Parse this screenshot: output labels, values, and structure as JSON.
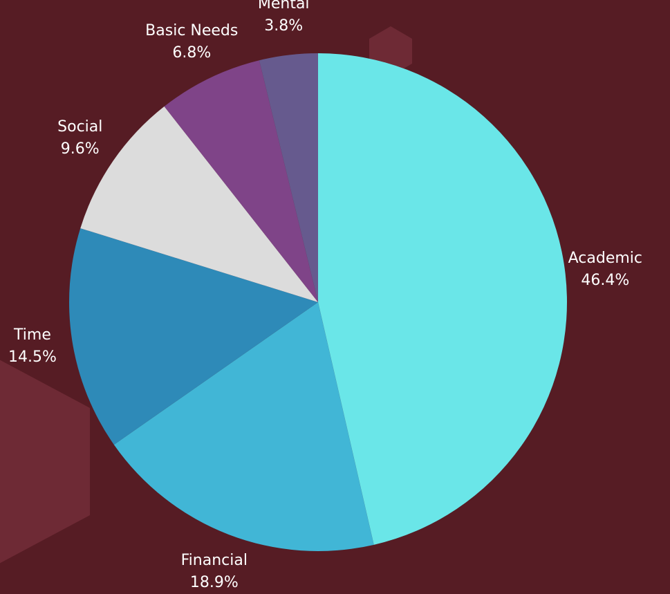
{
  "chart_data": {
    "type": "pie",
    "categories": [
      "Academic",
      "Financial",
      "Time",
      "Social",
      "Basic Needs",
      "Mental"
    ],
    "values": [
      46.4,
      18.9,
      14.5,
      9.6,
      6.8,
      3.8
    ],
    "value_labels": [
      "46.4%",
      "18.9%",
      "14.5%",
      "9.6%",
      "6.8%",
      "3.8%"
    ],
    "colors": [
      "#6ae6e8",
      "#41b6d6",
      "#2e8ab8",
      "#dcdcdc",
      "#7f4488",
      "#665a8e"
    ]
  }
}
